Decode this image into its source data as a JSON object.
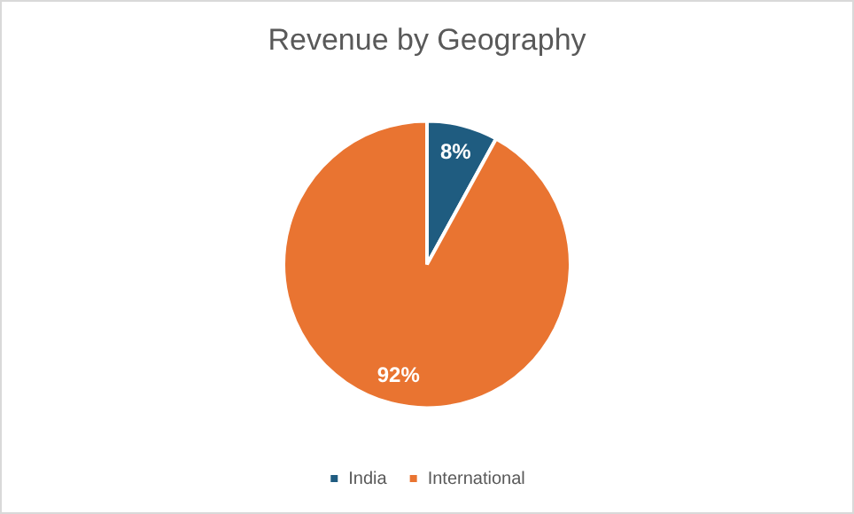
{
  "chart_data": {
    "type": "pie",
    "title": "Revenue by Geography",
    "categories": [
      "India",
      "International"
    ],
    "values": [
      8,
      92
    ],
    "colors": [
      "#1f5c80",
      "#e97431"
    ],
    "value_labels": [
      "8%",
      "92%"
    ],
    "legend": "bottom"
  }
}
